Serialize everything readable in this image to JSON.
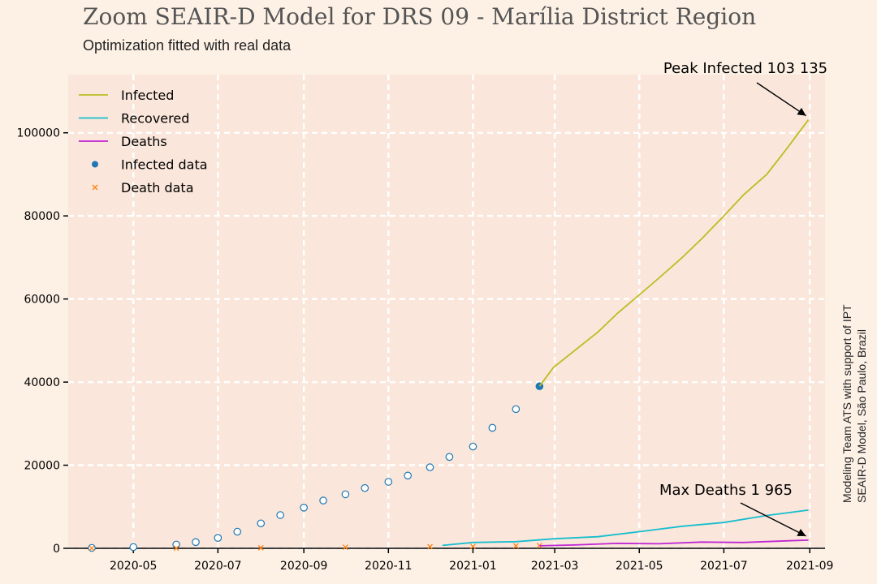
{
  "header": {
    "title": "Zoom SEAIR-D Model for DRS 09 - Marília District Region",
    "subtitle": "Optimization fitted with real data"
  },
  "side_note": {
    "line1": "Modeling Team ATS with support of IPT",
    "line2": "SEAIR-D Model, São Paulo, Brazil"
  },
  "colors": {
    "infected": "#bcbd22",
    "recovered": "#17becf",
    "deaths": "#c026d3",
    "infected_data": "#1f77b4",
    "death_data": "#ff7f0e",
    "plot_bg": "#fae6da",
    "grid": "#ffffff"
  },
  "chart_data": {
    "type": "line",
    "title": "Zoom SEAIR-D Model for DRS 09 - Marília District Region",
    "subtitle": "Optimization fitted with real data",
    "xlabel": "",
    "ylabel": "",
    "x_type": "date",
    "xlim": [
      "2020-03-15",
      "2021-09-12"
    ],
    "ylim": [
      0,
      114000
    ],
    "x_ticks": [
      "2020-05-01",
      "2020-07-01",
      "2020-09-01",
      "2020-11-01",
      "2021-01-01",
      "2021-03-01",
      "2021-05-01",
      "2021-07-01",
      "2021-09-01"
    ],
    "x_tick_labels": [
      "2020-05",
      "2020-07",
      "2020-09",
      "2020-11",
      "2021-01",
      "2021-03",
      "2021-05",
      "2021-07",
      "2021-09"
    ],
    "y_ticks": [
      0,
      20000,
      40000,
      60000,
      80000,
      100000
    ],
    "y_tick_labels": [
      "0",
      "20000",
      "40000",
      "60000",
      "80000",
      "100000"
    ],
    "grid": true,
    "legend_position": "top-left",
    "series": [
      {
        "name": "Infected",
        "kind": "line",
        "points": [
          [
            "2021-02-18",
            39000
          ],
          [
            "2021-02-28",
            43500
          ],
          [
            "2021-03-15",
            47500
          ],
          [
            "2021-04-01",
            52000
          ],
          [
            "2021-04-15",
            56500
          ],
          [
            "2021-05-01",
            61000
          ],
          [
            "2021-05-15",
            65000
          ],
          [
            "2021-06-01",
            70000
          ],
          [
            "2021-06-15",
            74500
          ],
          [
            "2021-07-01",
            80000
          ],
          [
            "2021-07-15",
            85000
          ],
          [
            "2021-08-01",
            90000
          ],
          [
            "2021-08-15",
            96000
          ],
          [
            "2021-08-31",
            103135
          ]
        ]
      },
      {
        "name": "Recovered",
        "kind": "line",
        "points": [
          [
            "2020-12-10",
            700
          ],
          [
            "2021-01-01",
            1400
          ],
          [
            "2021-02-01",
            1600
          ],
          [
            "2021-03-01",
            2300
          ],
          [
            "2021-04-01",
            2800
          ],
          [
            "2021-05-01",
            4000
          ],
          [
            "2021-06-01",
            5300
          ],
          [
            "2021-07-01",
            6200
          ],
          [
            "2021-08-01",
            7900
          ],
          [
            "2021-08-31",
            9200
          ]
        ]
      },
      {
        "name": "Deaths",
        "kind": "line",
        "points": [
          [
            "2021-02-18",
            600
          ],
          [
            "2021-03-15",
            800
          ],
          [
            "2021-04-15",
            1200
          ],
          [
            "2021-05-15",
            1100
          ],
          [
            "2021-06-15",
            1500
          ],
          [
            "2021-07-15",
            1400
          ],
          [
            "2021-08-15",
            1800
          ],
          [
            "2021-08-31",
            1965
          ]
        ]
      },
      {
        "name": "Infected data",
        "kind": "scatter",
        "points": [
          [
            "2020-04-01",
            100
          ],
          [
            "2020-05-01",
            300
          ],
          [
            "2020-06-01",
            900
          ],
          [
            "2020-06-15",
            1500
          ],
          [
            "2020-07-01",
            2500
          ],
          [
            "2020-07-15",
            4000
          ],
          [
            "2020-08-01",
            6000
          ],
          [
            "2020-08-15",
            8000
          ],
          [
            "2020-09-01",
            9800
          ],
          [
            "2020-09-15",
            11500
          ],
          [
            "2020-10-01",
            13000
          ],
          [
            "2020-10-15",
            14500
          ],
          [
            "2020-11-01",
            16000
          ],
          [
            "2020-11-15",
            17500
          ],
          [
            "2020-12-01",
            19500
          ],
          [
            "2020-12-15",
            22000
          ],
          [
            "2021-01-01",
            24500
          ],
          [
            "2021-01-15",
            29000
          ],
          [
            "2021-02-01",
            33500
          ],
          [
            "2021-02-18",
            39000
          ]
        ]
      },
      {
        "name": "Death data",
        "kind": "scatter",
        "points": [
          [
            "2020-04-01",
            5
          ],
          [
            "2020-06-01",
            30
          ],
          [
            "2020-08-01",
            120
          ],
          [
            "2020-10-01",
            250
          ],
          [
            "2020-12-01",
            380
          ],
          [
            "2021-01-01",
            450
          ],
          [
            "2021-02-01",
            580
          ],
          [
            "2021-02-18",
            640
          ]
        ]
      }
    ],
    "legend": [
      "Infected",
      "Recovered",
      "Deaths",
      "Infected data",
      "Death data"
    ],
    "annotations": [
      {
        "text": "Peak Infected 103 135",
        "x": "2021-08-31",
        "y": 103135
      },
      {
        "text": "Max Deaths 1 965",
        "x": "2021-08-31",
        "y": 1965
      }
    ]
  }
}
